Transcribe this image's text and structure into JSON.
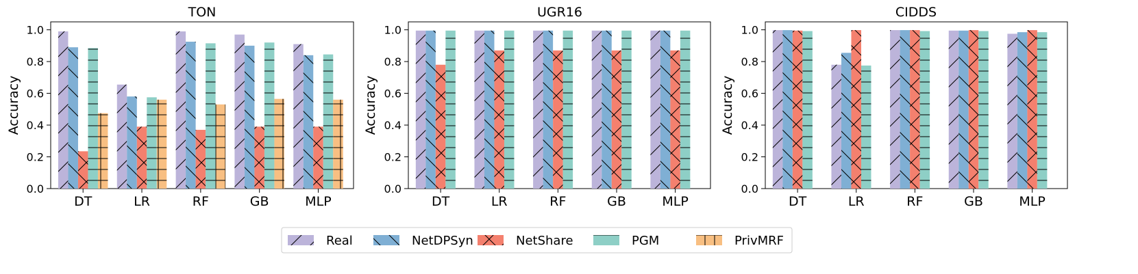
{
  "chart_data": [
    {
      "type": "bar",
      "title": "TON",
      "ylabel": "Accuracy",
      "xlabel": "",
      "ylim": [
        0,
        1.05
      ],
      "yticks": [
        "0.0",
        "0.2",
        "0.4",
        "0.6",
        "0.8",
        "1.0"
      ],
      "categories": [
        "DT",
        "LR",
        "RF",
        "GB",
        "MLP"
      ],
      "series": [
        {
          "name": "Real",
          "values": [
            0.99,
            0.655,
            0.99,
            0.97,
            0.91
          ]
        },
        {
          "name": "NetDPSyn",
          "values": [
            0.89,
            0.58,
            0.925,
            0.9,
            0.84
          ]
        },
        {
          "name": "NetShare",
          "values": [
            0.235,
            0.39,
            0.37,
            0.39,
            0.39
          ]
        },
        {
          "name": "PGM",
          "values": [
            0.885,
            0.575,
            0.915,
            0.92,
            0.845
          ]
        },
        {
          "name": "PrivMRF",
          "values": [
            0.475,
            0.56,
            0.53,
            0.565,
            0.56
          ]
        }
      ]
    },
    {
      "type": "bar",
      "title": "UGR16",
      "ylabel": "Accuracy",
      "xlabel": "",
      "ylim": [
        0,
        1.05
      ],
      "yticks": [
        "0.0",
        "0.2",
        "0.4",
        "0.6",
        "0.8",
        "1.0"
      ],
      "categories": [
        "DT",
        "LR",
        "RF",
        "GB",
        "MLP"
      ],
      "series": [
        {
          "name": "Real",
          "values": [
            0.995,
            0.995,
            0.995,
            0.995,
            0.995
          ]
        },
        {
          "name": "NetDPSyn",
          "values": [
            0.995,
            0.995,
            0.995,
            0.995,
            0.995
          ]
        },
        {
          "name": "NetShare",
          "values": [
            0.78,
            0.87,
            0.87,
            0.87,
            0.87
          ]
        },
        {
          "name": "PGM",
          "values": [
            0.995,
            0.995,
            0.995,
            0.995,
            0.995
          ]
        }
      ]
    },
    {
      "type": "bar",
      "title": "CIDDS",
      "ylabel": "Accuracy",
      "xlabel": "",
      "ylim": [
        0,
        1.05
      ],
      "yticks": [
        "0.0",
        "0.2",
        "0.4",
        "0.6",
        "0.8",
        "1.0"
      ],
      "categories": [
        "DT",
        "LR",
        "RF",
        "GB",
        "MLP"
      ],
      "series": [
        {
          "name": "Real",
          "values": [
            0.998,
            0.78,
            0.998,
            0.995,
            0.975
          ]
        },
        {
          "name": "NetDPSyn",
          "values": [
            0.998,
            0.855,
            0.998,
            0.995,
            0.985
          ]
        },
        {
          "name": "NetShare",
          "values": [
            0.995,
            0.998,
            0.998,
            0.998,
            0.998
          ]
        },
        {
          "name": "PGM",
          "values": [
            0.992,
            0.775,
            0.992,
            0.992,
            0.985
          ]
        }
      ]
    }
  ],
  "legend": {
    "position": "bottom-center",
    "items": [
      {
        "name": "Real",
        "color": "#bcb4da",
        "hatch": "slash"
      },
      {
        "name": "NetDPSyn",
        "color": "#7fafd4",
        "hatch": "backslash"
      },
      {
        "name": "NetShare",
        "color": "#f4806e",
        "hatch": "cross"
      },
      {
        "name": "PGM",
        "color": "#8ecfc6",
        "hatch": "horizontal"
      },
      {
        "name": "PrivMRF",
        "color": "#f8bf82",
        "hatch": "grid"
      }
    ]
  }
}
